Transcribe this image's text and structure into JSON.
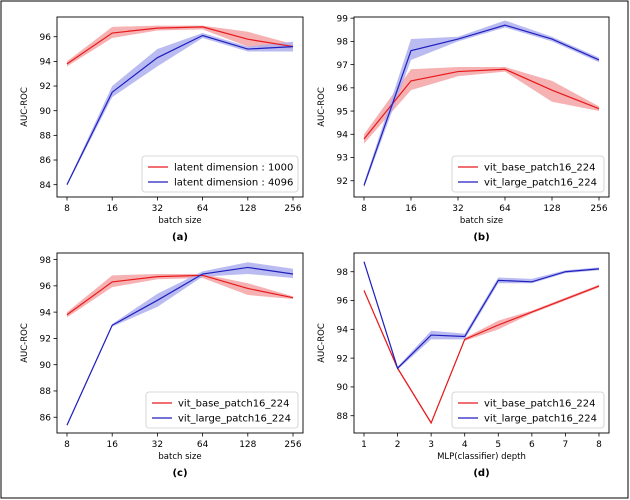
{
  "chart_data": [
    {
      "type": "line",
      "caption": "(a)",
      "xlabel": "batch size",
      "ylabel": "AUC-ROC",
      "x_scale": "log2",
      "x": [
        8,
        16,
        32,
        64,
        128,
        256
      ],
      "x_tick_labels": [
        "8",
        "16",
        "32",
        "64",
        "128",
        "256"
      ],
      "ylim": [
        83.0,
        97.6
      ],
      "y_ticks": [
        84,
        86,
        88,
        90,
        92,
        94,
        96
      ],
      "legend_position": "lower-right",
      "grid": false,
      "series": [
        {
          "name": "latent dimension : 1000",
          "color": "#e8191a",
          "band_color": "#f4a3a6",
          "values": [
            93.8,
            96.3,
            96.7,
            96.8,
            95.8,
            95.2
          ],
          "lower": [
            93.6,
            95.9,
            96.5,
            96.6,
            95.2,
            95.0
          ],
          "upper": [
            94.0,
            96.8,
            96.9,
            96.9,
            96.4,
            95.4
          ]
        },
        {
          "name": "latent dimension : 4096",
          "color": "#1f1fbf",
          "band_color": "#aeb0ee",
          "values": [
            84.0,
            91.5,
            94.3,
            96.1,
            95.0,
            95.2
          ],
          "lower": [
            83.9,
            91.1,
            93.6,
            95.9,
            94.8,
            94.8
          ],
          "upper": [
            84.1,
            92.0,
            95.0,
            96.3,
            95.2,
            95.6
          ]
        }
      ]
    },
    {
      "type": "line",
      "caption": "(b)",
      "xlabel": "batch size",
      "ylabel": "AUC-ROC",
      "x_scale": "log2",
      "x": [
        8,
        16,
        32,
        64,
        128,
        256
      ],
      "x_tick_labels": [
        "8",
        "16",
        "32",
        "64",
        "128",
        "256"
      ],
      "ylim": [
        91.3,
        99.05
      ],
      "y_ticks": [
        92,
        93,
        94,
        95,
        96,
        97,
        98,
        99
      ],
      "legend_position": "lower-right",
      "grid": false,
      "series": [
        {
          "name": "vit_base_patch16_224",
          "color": "#e8191a",
          "band_color": "#f4a3a6",
          "values": [
            93.8,
            96.3,
            96.7,
            96.8,
            95.9,
            95.1
          ],
          "lower": [
            93.6,
            95.9,
            96.5,
            96.7,
            95.4,
            95.0
          ],
          "upper": [
            94.0,
            96.8,
            96.9,
            96.9,
            96.3,
            95.2
          ]
        },
        {
          "name": "vit_large_patch16_224",
          "color": "#1f1fbf",
          "band_color": "#aeb0ee",
          "values": [
            91.8,
            97.6,
            98.1,
            98.7,
            98.1,
            97.2
          ],
          "lower": [
            91.7,
            97.2,
            98.0,
            98.6,
            98.0,
            97.1
          ],
          "upper": [
            91.9,
            98.1,
            98.2,
            98.9,
            98.2,
            97.3
          ]
        }
      ]
    },
    {
      "type": "line",
      "caption": "(c)",
      "xlabel": "batch size",
      "ylabel": "AUC-ROC",
      "x_scale": "log2",
      "x": [
        8,
        16,
        32,
        64,
        128,
        256
      ],
      "x_tick_labels": [
        "8",
        "16",
        "32",
        "64",
        "128",
        "256"
      ],
      "ylim": [
        84.8,
        98.5
      ],
      "y_ticks": [
        86,
        88,
        90,
        92,
        94,
        96,
        98
      ],
      "legend_position": "lower-right",
      "grid": false,
      "series": [
        {
          "name": "vit_base_patch16_224",
          "color": "#e8191a",
          "band_color": "#f4a3a6",
          "values": [
            93.8,
            96.3,
            96.7,
            96.8,
            95.8,
            95.1
          ],
          "lower": [
            93.6,
            95.9,
            96.5,
            96.6,
            95.3,
            95.0
          ],
          "upper": [
            94.0,
            96.8,
            96.9,
            96.9,
            96.2,
            95.2
          ]
        },
        {
          "name": "vit_large_patch16_224",
          "color": "#1f1fbf",
          "band_color": "#aeb0ee",
          "values": [
            85.4,
            93.0,
            94.9,
            96.9,
            97.4,
            96.9
          ],
          "lower": [
            85.3,
            92.9,
            94.4,
            96.7,
            96.9,
            96.6
          ],
          "upper": [
            85.5,
            93.1,
            95.4,
            97.1,
            97.8,
            97.3
          ]
        }
      ]
    },
    {
      "type": "line",
      "caption": "(d)",
      "xlabel": "MLP(classifier) depth",
      "ylabel": "AUC-ROC",
      "x_scale": "linear",
      "x": [
        1,
        2,
        3,
        4,
        5,
        6,
        7,
        8
      ],
      "x_tick_labels": [
        "1",
        "2",
        "3",
        "4",
        "5",
        "6",
        "7",
        "8"
      ],
      "ylim": [
        86.8,
        99.3
      ],
      "y_ticks": [
        88,
        90,
        92,
        94,
        96,
        98
      ],
      "legend_position": "lower-right",
      "grid": false,
      "series": [
        {
          "name": "vit_base_patch16_224",
          "color": "#e8191a",
          "band_color": "#f4a3a6",
          "values": [
            96.7,
            91.3,
            87.5,
            93.3,
            94.3,
            95.2,
            96.1,
            97.0
          ],
          "lower": [
            96.6,
            91.2,
            87.4,
            93.2,
            94.0,
            95.1,
            96.0,
            96.9
          ],
          "upper": [
            96.8,
            91.4,
            87.6,
            93.4,
            94.6,
            95.3,
            96.2,
            97.1
          ]
        },
        {
          "name": "vit_large_patch16_224",
          "color": "#1f1fbf",
          "band_color": "#aeb0ee",
          "values": [
            98.7,
            91.3,
            93.6,
            93.5,
            97.4,
            97.3,
            98.0,
            98.2
          ],
          "lower": [
            98.6,
            91.2,
            93.3,
            93.3,
            97.2,
            97.2,
            97.9,
            98.1
          ],
          "upper": [
            98.8,
            91.4,
            93.9,
            93.7,
            97.6,
            97.5,
            98.1,
            98.3
          ]
        }
      ]
    }
  ]
}
